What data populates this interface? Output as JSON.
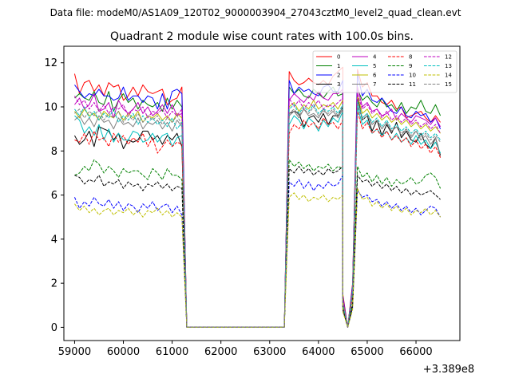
{
  "header": {
    "data_file": "Data file: modeM0/AS1A09_120T02_9000003904_27043cztM0_level2_quad_clean.evt"
  },
  "chart_data": {
    "type": "line",
    "title": "Quadrant 2 module wise count rates with 100.0s bins.",
    "xlabel": "",
    "ylabel": "",
    "x_offset_label": "+3.389e8",
    "xlim": [
      58780,
      66900
    ],
    "ylim": [
      -0.6,
      12.75
    ],
    "xticks": [
      59000,
      60000,
      61000,
      62000,
      63000,
      64000,
      65000,
      66000
    ],
    "xtick_labels": [
      "59000",
      "60000",
      "61000",
      "62000",
      "63000",
      "64000",
      "65000",
      "66000"
    ],
    "yticks": [
      0,
      2,
      4,
      6,
      8,
      10,
      12
    ],
    "ytick_labels": [
      "0",
      "2",
      "4",
      "6",
      "8",
      "10",
      "12"
    ],
    "grid": false,
    "legend": "top-right, 4 columns",
    "segments": {
      "seg1": {
        "start": 59000,
        "step": 100,
        "count": 23
      },
      "seg2": {
        "start": 63400,
        "step": 100,
        "count": 12
      },
      "seg3": {
        "start": 64800,
        "step": 100,
        "count": 18
      },
      "dip_x": [
        64500,
        64600,
        64700
      ]
    },
    "series": [
      {
        "name": "0",
        "color": "#ff0000",
        "dash": "solid",
        "seg1": [
          11.5,
          10.6,
          11.1,
          11.2,
          10.7,
          11.0,
          10.5,
          11.1,
          10.9,
          11.0,
          10.3,
          10.5,
          10.9,
          10.5,
          11.0,
          10.7,
          10.6,
          10.7,
          10.8,
          10.1,
          10.3,
          10.4,
          10.9
        ],
        "seg2": [
          11.6,
          11.2,
          11.0,
          11.1,
          11.3,
          11.1,
          11.0,
          11.2,
          11.0,
          11.4,
          11.6,
          11.8
        ],
        "dip": [
          1.5,
          0,
          2.0
        ],
        "seg3": [
          11.7,
          10.9,
          11.1,
          10.5,
          10.5,
          10.2,
          10.1,
          10.3,
          9.9,
          10.0,
          9.5,
          9.6,
          9.7,
          9.8,
          9.5,
          9.3,
          9.6,
          9.3
        ]
      },
      {
        "name": "1",
        "color": "#008000",
        "dash": "solid",
        "seg1": [
          10.4,
          10.6,
          10.4,
          10.3,
          10.7,
          10.2,
          10.1,
          10.7,
          9.8,
          10.3,
          10.6,
          10.2,
          10.4,
          9.9,
          10.3,
          10.1,
          10.0,
          10.2,
          9.8,
          10.4,
          9.9,
          10.3,
          10.0
        ],
        "seg2": [
          10.9,
          10.6,
          10.8,
          10.5,
          10.4,
          10.8,
          10.6,
          10.4,
          10.7,
          10.9,
          10.5,
          10.6
        ],
        "dip": [
          1.3,
          0,
          1.8
        ],
        "seg3": [
          10.8,
          10.3,
          10.5,
          10.2,
          10.0,
          10.4,
          10.0,
          10.1,
          9.8,
          10.2,
          9.7,
          10.0,
          9.9,
          10.3,
          9.8,
          9.7,
          10.1,
          9.6
        ]
      },
      {
        "name": "2",
        "color": "#0000ff",
        "dash": "solid",
        "seg1": [
          11.0,
          10.7,
          10.4,
          10.6,
          10.5,
          10.8,
          10.5,
          10.5,
          10.3,
          10.4,
          10.9,
          10.3,
          10.5,
          10.5,
          10.2,
          10.5,
          10.4,
          9.9,
          10.6,
          9.9,
          10.7,
          10.8,
          10.6
        ],
        "seg2": [
          11.2,
          10.6,
          10.9,
          10.7,
          10.8,
          10.6,
          10.5,
          10.9,
          11.0,
          10.7,
          10.7,
          11.2
        ],
        "dip": [
          1.4,
          0,
          1.9
        ],
        "seg3": [
          11.5,
          10.5,
          10.8,
          10.3,
          10.2,
          10.4,
          10.1,
          9.8,
          9.7,
          10.0,
          9.6,
          9.5,
          9.8,
          9.6,
          9.7,
          9.3,
          9.5,
          9.0
        ]
      },
      {
        "name": "3",
        "color": "#000000",
        "dash": "solid",
        "seg1": [
          8.7,
          8.3,
          8.5,
          8.9,
          8.2,
          9.1,
          9.0,
          8.9,
          8.5,
          8.8,
          8.1,
          8.5,
          8.4,
          8.5,
          8.9,
          8.9,
          8.5,
          8.7,
          8.3,
          8.7,
          8.5,
          8.8,
          8.2
        ],
        "seg2": [
          9.7,
          9.8,
          9.7,
          9.1,
          9.5,
          9.6,
          9.3,
          9.7,
          9.2,
          9.6,
          9.6,
          10.0
        ],
        "dip": [
          1.2,
          0,
          1.6
        ],
        "seg3": [
          10.5,
          9.4,
          9.6,
          8.9,
          9.4,
          8.7,
          9.2,
          8.8,
          9.3,
          8.6,
          8.9,
          8.5,
          8.4,
          8.8,
          8.3,
          8.1,
          8.6,
          7.8
        ]
      },
      {
        "name": "4",
        "color": "#bf00bf",
        "dash": "solid",
        "seg1": [
          10.1,
          10.4,
          9.9,
          10.1,
          10.6,
          9.8,
          9.9,
          10.2,
          9.5,
          10.3,
          9.9,
          9.7,
          9.9,
          10.2,
          9.7,
          10.0,
          9.6,
          9.8,
          10.1,
          9.7,
          10.1,
          9.6,
          9.7
        ],
        "seg2": [
          10.3,
          10.6,
          10.4,
          10.2,
          10.5,
          10.3,
          10.7,
          10.4,
          10.3,
          10.6,
          10.6,
          10.8
        ],
        "dip": [
          1.3,
          0,
          1.7
        ],
        "seg3": [
          10.9,
          10.0,
          10.2,
          9.8,
          9.9,
          9.6,
          9.7,
          9.9,
          9.4,
          9.7,
          9.5,
          9.3,
          9.6,
          9.5,
          9.4,
          9.2,
          9.5,
          9.1
        ]
      },
      {
        "name": "5",
        "color": "#00bfbf",
        "dash": "solid",
        "seg1": [
          9.6,
          9.4,
          8.8,
          9.1,
          8.7,
          9.2,
          8.5,
          9.0,
          8.4,
          8.8,
          8.5,
          8.5,
          8.9,
          8.8,
          8.4,
          8.5,
          8.8,
          8.4,
          8.7,
          8.8,
          8.2,
          8.6,
          8.7
        ],
        "seg2": [
          9.2,
          9.6,
          9.4,
          9.0,
          9.5,
          9.3,
          8.9,
          9.4,
          9.1,
          9.5,
          9.3,
          9.8
        ],
        "dip": [
          1.1,
          0,
          1.5
        ],
        "seg3": [
          10.0,
          9.2,
          9.4,
          8.8,
          9.0,
          8.7,
          8.9,
          8.5,
          8.8,
          8.4,
          8.6,
          8.3,
          8.7,
          8.3,
          8.5,
          8.1,
          8.4,
          7.9
        ]
      },
      {
        "name": "6",
        "color": "#bfbf00",
        "dash": "solid",
        "seg1": [
          9.8,
          9.5,
          9.9,
          9.6,
          9.7,
          9.4,
          9.8,
          9.6,
          9.5,
          9.8,
          9.4,
          9.7,
          9.5,
          9.8,
          9.3,
          9.6,
          9.5,
          9.7,
          9.4,
          9.6,
          9.3,
          9.7,
          9.5
        ],
        "seg2": [
          10.0,
          10.2,
          9.8,
          10.1,
          9.9,
          10.3,
          9.9,
          10.1,
          10.0,
          10.2,
          9.9,
          10.3
        ],
        "dip": [
          1.2,
          0,
          1.7
        ],
        "seg3": [
          10.5,
          9.7,
          9.9,
          9.5,
          9.7,
          9.4,
          9.6,
          9.3,
          9.5,
          9.2,
          9.4,
          9.1,
          9.3,
          9.0,
          9.2,
          8.9,
          9.1,
          8.8
        ]
      },
      {
        "name": "7",
        "color": "#808080",
        "dash": "solid",
        "seg1": [
          9.4,
          9.6,
          9.2,
          9.5,
          9.1,
          9.6,
          9.3,
          9.4,
          9.0,
          9.5,
          9.2,
          9.3,
          9.1,
          9.5,
          9.0,
          9.3,
          9.2,
          9.4,
          9.0,
          9.3,
          8.9,
          9.4,
          9.1
        ],
        "seg2": [
          9.6,
          9.8,
          9.5,
          9.9,
          9.6,
          9.7,
          9.5,
          9.9,
          9.6,
          9.8,
          9.5,
          9.9
        ],
        "dip": [
          1.1,
          0,
          1.6
        ],
        "seg3": [
          10.3,
          9.5,
          9.7,
          9.2,
          9.4,
          9.0,
          9.3,
          8.9,
          9.1,
          8.7,
          9.0,
          8.6,
          8.9,
          8.5,
          8.7,
          8.3,
          8.6,
          7.7
        ]
      },
      {
        "name": "8",
        "color": "#ff0000",
        "dash": "dashed",
        "seg1": [
          8.5,
          8.4,
          8.8,
          8.3,
          8.9,
          8.5,
          8.6,
          8.2,
          8.8,
          8.4,
          8.7,
          8.3,
          8.6,
          8.4,
          8.8,
          8.2,
          8.6,
          7.9,
          8.2,
          8.5,
          8.2,
          8.4,
          8.3
        ],
        "seg2": [
          8.8,
          9.2,
          9.0,
          9.4,
          9.1,
          9.3,
          9.0,
          9.5,
          9.2,
          9.3,
          9.0,
          9.4
        ],
        "dip": [
          1.0,
          0,
          1.4
        ],
        "seg3": [
          9.8,
          9.0,
          9.3,
          8.8,
          9.0,
          8.6,
          8.9,
          8.5,
          8.7,
          8.4,
          8.6,
          8.2,
          8.5,
          8.1,
          8.3,
          7.9,
          8.2,
          7.7
        ]
      },
      {
        "name": "9",
        "color": "#008000",
        "dash": "dashed",
        "seg1": [
          6.9,
          7.0,
          7.3,
          7.1,
          7.6,
          7.4,
          7.0,
          7.3,
          7.1,
          6.8,
          7.2,
          7.0,
          7.1,
          7.1,
          6.9,
          6.7,
          7.2,
          7.0,
          6.7,
          7.2,
          6.9,
          6.9,
          6.7
        ],
        "seg2": [
          7.6,
          7.3,
          7.5,
          7.2,
          7.4,
          7.1,
          7.3,
          7.2,
          7.4,
          7.1,
          7.3,
          7.2
        ],
        "dip": [
          0.9,
          0,
          1.1
        ],
        "seg3": [
          7.3,
          6.8,
          7.0,
          6.6,
          6.9,
          6.5,
          6.8,
          6.4,
          6.7,
          6.5,
          6.6,
          6.8,
          6.5,
          6.6,
          6.9,
          7.0,
          6.8,
          6.3
        ]
      },
      {
        "name": "10",
        "color": "#0000ff",
        "dash": "dashed",
        "seg1": [
          5.9,
          5.4,
          5.7,
          5.5,
          5.9,
          5.6,
          5.5,
          5.8,
          5.4,
          5.7,
          5.3,
          5.6,
          5.5,
          5.2,
          5.6,
          5.4,
          5.7,
          5.3,
          5.5,
          5.6,
          5.2,
          5.5,
          5.1
        ],
        "seg2": [
          6.6,
          6.4,
          6.7,
          6.3,
          6.6,
          6.2,
          6.5,
          6.3,
          6.6,
          6.4,
          6.5,
          6.9
        ],
        "dip": [
          0.8,
          0,
          0.9
        ],
        "seg3": [
          6.2,
          5.9,
          6.0,
          5.7,
          5.8,
          5.5,
          5.7,
          5.4,
          5.6,
          5.3,
          5.5,
          5.2,
          5.4,
          5.1,
          5.3,
          5.5,
          5.4,
          5.0
        ]
      },
      {
        "name": "11",
        "color": "#000000",
        "dash": "dashed",
        "seg1": [
          6.9,
          6.8,
          6.5,
          6.7,
          6.6,
          6.9,
          6.4,
          6.6,
          6.5,
          6.7,
          6.3,
          6.6,
          6.4,
          6.5,
          6.2,
          6.5,
          6.4,
          6.6,
          6.3,
          6.5,
          6.2,
          6.4,
          6.3
        ],
        "seg2": [
          7.2,
          7.0,
          7.3,
          7.0,
          7.2,
          6.9,
          7.1,
          6.9,
          7.2,
          7.0,
          7.1,
          7.3
        ],
        "dip": [
          0.8,
          0,
          1.0
        ],
        "seg3": [
          6.9,
          6.6,
          6.7,
          6.4,
          6.6,
          6.3,
          6.5,
          6.2,
          6.4,
          6.1,
          6.3,
          6.0,
          6.2,
          6.0,
          6.1,
          6.2,
          6.0,
          5.8
        ]
      },
      {
        "name": "12",
        "color": "#bf00bf",
        "dash": "dashed",
        "seg1": [
          10.5,
          10.1,
          10.3,
          9.9,
          10.2,
          9.8,
          10.1,
          9.7,
          10.0,
          9.9,
          10.1,
          9.6,
          9.9,
          9.8,
          10.0,
          9.5,
          9.8,
          9.7,
          9.9,
          9.5,
          9.8,
          9.6,
          9.9
        ],
        "seg2": [
          10.4,
          10.0,
          10.3,
          9.9,
          10.2,
          10.0,
          10.3,
          9.9,
          10.1,
          10.0,
          10.2,
          10.4
        ],
        "dip": [
          1.2,
          0,
          1.7
        ],
        "seg3": [
          10.6,
          9.9,
          10.1,
          9.7,
          9.9,
          9.5,
          9.8,
          9.4,
          9.6,
          9.3,
          9.5,
          9.2,
          9.4,
          9.1,
          9.3,
          9.0,
          9.2,
          8.8
        ]
      },
      {
        "name": "13",
        "color": "#00bfbf",
        "dash": "dashed",
        "seg1": [
          9.9,
          9.6,
          10.0,
          9.5,
          9.8,
          9.4,
          9.7,
          9.5,
          9.9,
          9.3,
          9.6,
          9.4,
          9.7,
          9.2,
          9.6,
          9.3,
          9.5,
          9.2,
          9.4,
          9.1,
          9.5,
          9.0,
          9.3
        ],
        "seg2": [
          9.9,
          10.1,
          9.7,
          10.0,
          9.8,
          10.1,
          9.7,
          9.9,
          9.8,
          10.0,
          9.7,
          10.1
        ],
        "dip": [
          1.1,
          0,
          1.6
        ],
        "seg3": [
          10.2,
          9.5,
          9.7,
          9.3,
          9.5,
          9.1,
          9.4,
          9.0,
          9.2,
          8.9,
          9.1,
          8.8,
          9.0,
          8.7,
          8.9,
          8.6,
          8.8,
          8.5
        ]
      },
      {
        "name": "14",
        "color": "#bfbf00",
        "dash": "dashed",
        "seg1": [
          5.6,
          5.3,
          5.5,
          5.2,
          5.4,
          5.1,
          5.3,
          5.4,
          5.1,
          5.3,
          5.2,
          5.4,
          5.1,
          5.3,
          5.0,
          5.3,
          5.2,
          5.4,
          5.1,
          5.3,
          5.0,
          5.2,
          5.0
        ],
        "seg2": [
          5.9,
          6.1,
          5.8,
          6.0,
          5.7,
          5.9,
          5.8,
          6.0,
          5.7,
          5.9,
          5.8,
          6.0
        ],
        "dip": [
          0.7,
          0,
          0.8
        ],
        "seg3": [
          6.3,
          5.8,
          5.9,
          5.5,
          5.7,
          5.4,
          5.6,
          5.3,
          5.5,
          5.2,
          5.4,
          5.1,
          5.3,
          5.2,
          5.4,
          5.1,
          5.3,
          5.0
        ]
      },
      {
        "name": "15",
        "color": "#808080",
        "dash": "dashed",
        "seg1": [
          9.7,
          9.9,
          9.5,
          9.8,
          9.6,
          9.9,
          9.4,
          9.7,
          9.5,
          9.8,
          9.3,
          9.6,
          9.4,
          9.7,
          9.3,
          9.6,
          9.4,
          9.6,
          9.2,
          9.5,
          9.3,
          9.6,
          9.2
        ],
        "seg2": [
          9.7,
          9.9,
          9.6,
          9.9,
          9.7,
          10.0,
          9.6,
          9.8,
          9.7,
          9.9,
          9.6,
          10.0
        ],
        "dip": [
          1.1,
          0,
          1.6
        ],
        "seg3": [
          10.1,
          9.4,
          9.6,
          9.2,
          9.4,
          9.0,
          9.3,
          8.9,
          9.1,
          8.8,
          9.0,
          8.7,
          8.9,
          8.6,
          8.8,
          8.5,
          8.7,
          8.4
        ]
      }
    ]
  }
}
